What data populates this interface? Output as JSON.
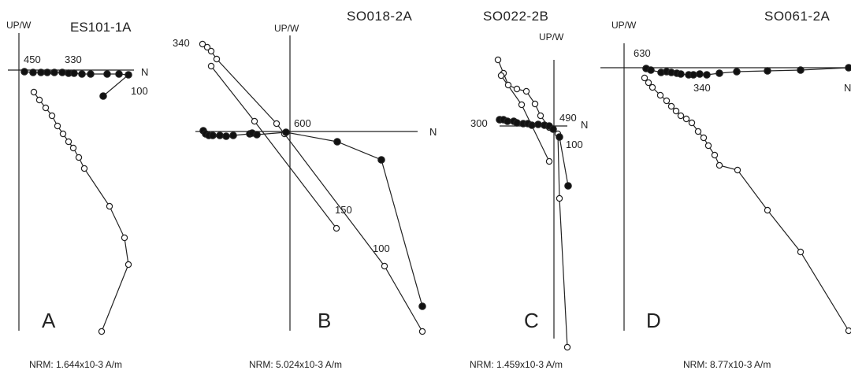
{
  "figure": {
    "axis_up_label": "UP/W",
    "axis_n_label": "N",
    "colors": {
      "ink": "#222222",
      "open_fill": "#ffffff",
      "solid_fill": "#111111"
    },
    "panels": [
      {
        "id": "A",
        "title": "ES101-1A",
        "nrm": "NRM: 1.644x10-3 A/m",
        "annotations": [
          "450",
          "330",
          "100"
        ]
      },
      {
        "id": "B",
        "title": "SO018-2A",
        "nrm": "NRM: 5.024x10-3 A/m",
        "annotations": [
          "340",
          "600",
          "150",
          "100"
        ]
      },
      {
        "id": "C",
        "title": "SO022-2B",
        "nrm": "NRM: 1.459x10-3 A/m",
        "annotations": [
          "300",
          "490",
          "100"
        ]
      },
      {
        "id": "D",
        "title": "SO061-2A",
        "nrm": "NRM: 8.77x10-3 A/m",
        "annotations": [
          "630",
          "340"
        ]
      }
    ]
  }
}
